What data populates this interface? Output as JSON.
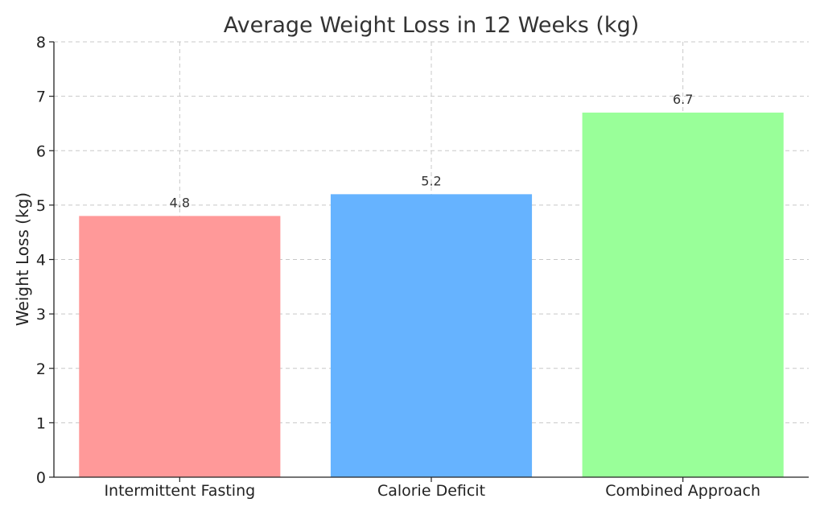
{
  "chart_data": {
    "type": "bar",
    "title": "Average Weight Loss in 12 Weeks (kg)",
    "xlabel": "",
    "ylabel": "Weight Loss (kg)",
    "ylim": [
      0,
      8
    ],
    "yticks": [
      0,
      1,
      2,
      3,
      4,
      5,
      6,
      7,
      8
    ],
    "grid": true,
    "categories": [
      "Intermittent Fasting",
      "Calorie Deficit",
      "Combined Approach"
    ],
    "values": [
      4.8,
      5.2,
      6.7
    ],
    "data_labels": [
      "4.8",
      "5.2",
      "6.7"
    ],
    "colors": [
      "#ff9999",
      "#66b3ff",
      "#99ff99"
    ]
  }
}
